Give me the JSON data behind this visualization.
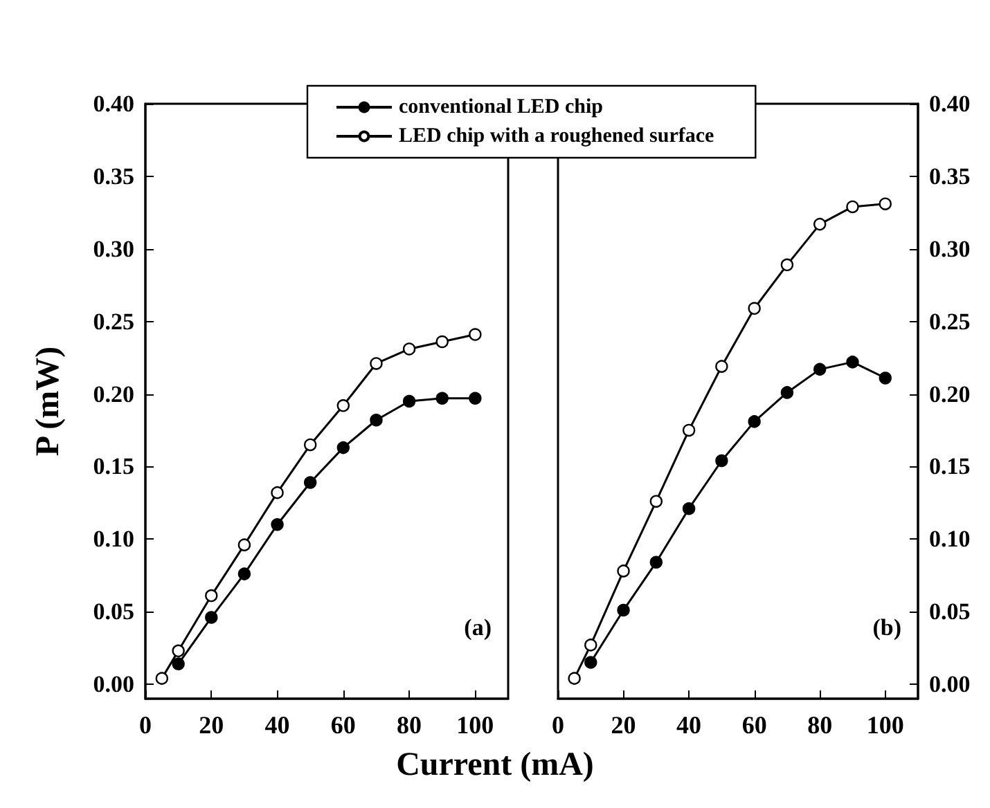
{
  "chart_data": [
    {
      "type": "line",
      "xlabel": "Current (mA)",
      "ylabel": "P (mW)",
      "annotations": [
        "(a)"
      ],
      "legend": "top",
      "marker": "circle",
      "line_style": "solid",
      "grid": false,
      "x": [
        5,
        10,
        20,
        30,
        40,
        50,
        60,
        70,
        80,
        90,
        100
      ],
      "xlim": [
        0,
        110
      ],
      "xticks": [
        0,
        20,
        40,
        60,
        80,
        100
      ],
      "ylim": [
        -0.01,
        0.4
      ],
      "yticks": [
        {
          "value": 0,
          "label": "0.00"
        },
        {
          "value": 0.05,
          "label": "0.05"
        },
        {
          "value": 0.1,
          "label": "0.10"
        },
        {
          "value": 0.15,
          "label": "0.15"
        },
        {
          "value": 0.2,
          "label": "0.20"
        },
        {
          "value": 0.25,
          "label": "0.25"
        },
        {
          "value": 0.3,
          "label": "0.30"
        },
        {
          "value": 0.35,
          "label": "0.35"
        },
        {
          "value": 0.4,
          "label": "0.40"
        }
      ],
      "series": [
        {
          "name": "conventional LED chip",
          "color": "#000000",
          "values": [
            null,
            0.014,
            0.046,
            0.076,
            0.11,
            0.139,
            0.163,
            0.182,
            0.195,
            0.197,
            0.197
          ]
        },
        {
          "name": "LED chip with a roughened surface",
          "color": "#000000",
          "values": [
            0.004,
            0.023,
            0.061,
            0.096,
            0.132,
            0.165,
            0.192,
            0.221,
            0.231,
            0.236,
            0.241
          ]
        }
      ]
    },
    {
      "type": "line",
      "annotations": [
        "(b)"
      ],
      "marker": "circle",
      "line_style": "solid",
      "grid": false,
      "x": [
        5,
        10,
        20,
        30,
        40,
        50,
        60,
        70,
        80,
        90,
        100
      ],
      "xlim": [
        0,
        110
      ],
      "xticks": [
        0,
        20,
        40,
        60,
        80,
        100
      ],
      "ylim": [
        -0.01,
        0.4
      ],
      "yticks": [
        {
          "value": 0,
          "label": "0.00"
        },
        {
          "value": 0.05,
          "label": "0.05"
        },
        {
          "value": 0.1,
          "label": "0.10"
        },
        {
          "value": 0.15,
          "label": "0.15"
        },
        {
          "value": 0.2,
          "label": "0.20"
        },
        {
          "value": 0.25,
          "label": "0.25"
        },
        {
          "value": 0.3,
          "label": "0.30"
        },
        {
          "value": 0.35,
          "label": "0.35"
        },
        {
          "value": 0.4,
          "label": "0.40"
        }
      ],
      "series": [
        {
          "color": "#000000",
          "values": [
            null,
            0.015,
            0.051,
            0.084,
            0.121,
            0.154,
            0.181,
            0.201,
            0.217,
            0.222,
            0.211
          ]
        },
        {
          "color": "#000000",
          "values": [
            0.004,
            0.027,
            0.078,
            0.126,
            0.175,
            0.219,
            0.259,
            0.289,
            0.317,
            0.329,
            0.331
          ]
        }
      ]
    }
  ]
}
